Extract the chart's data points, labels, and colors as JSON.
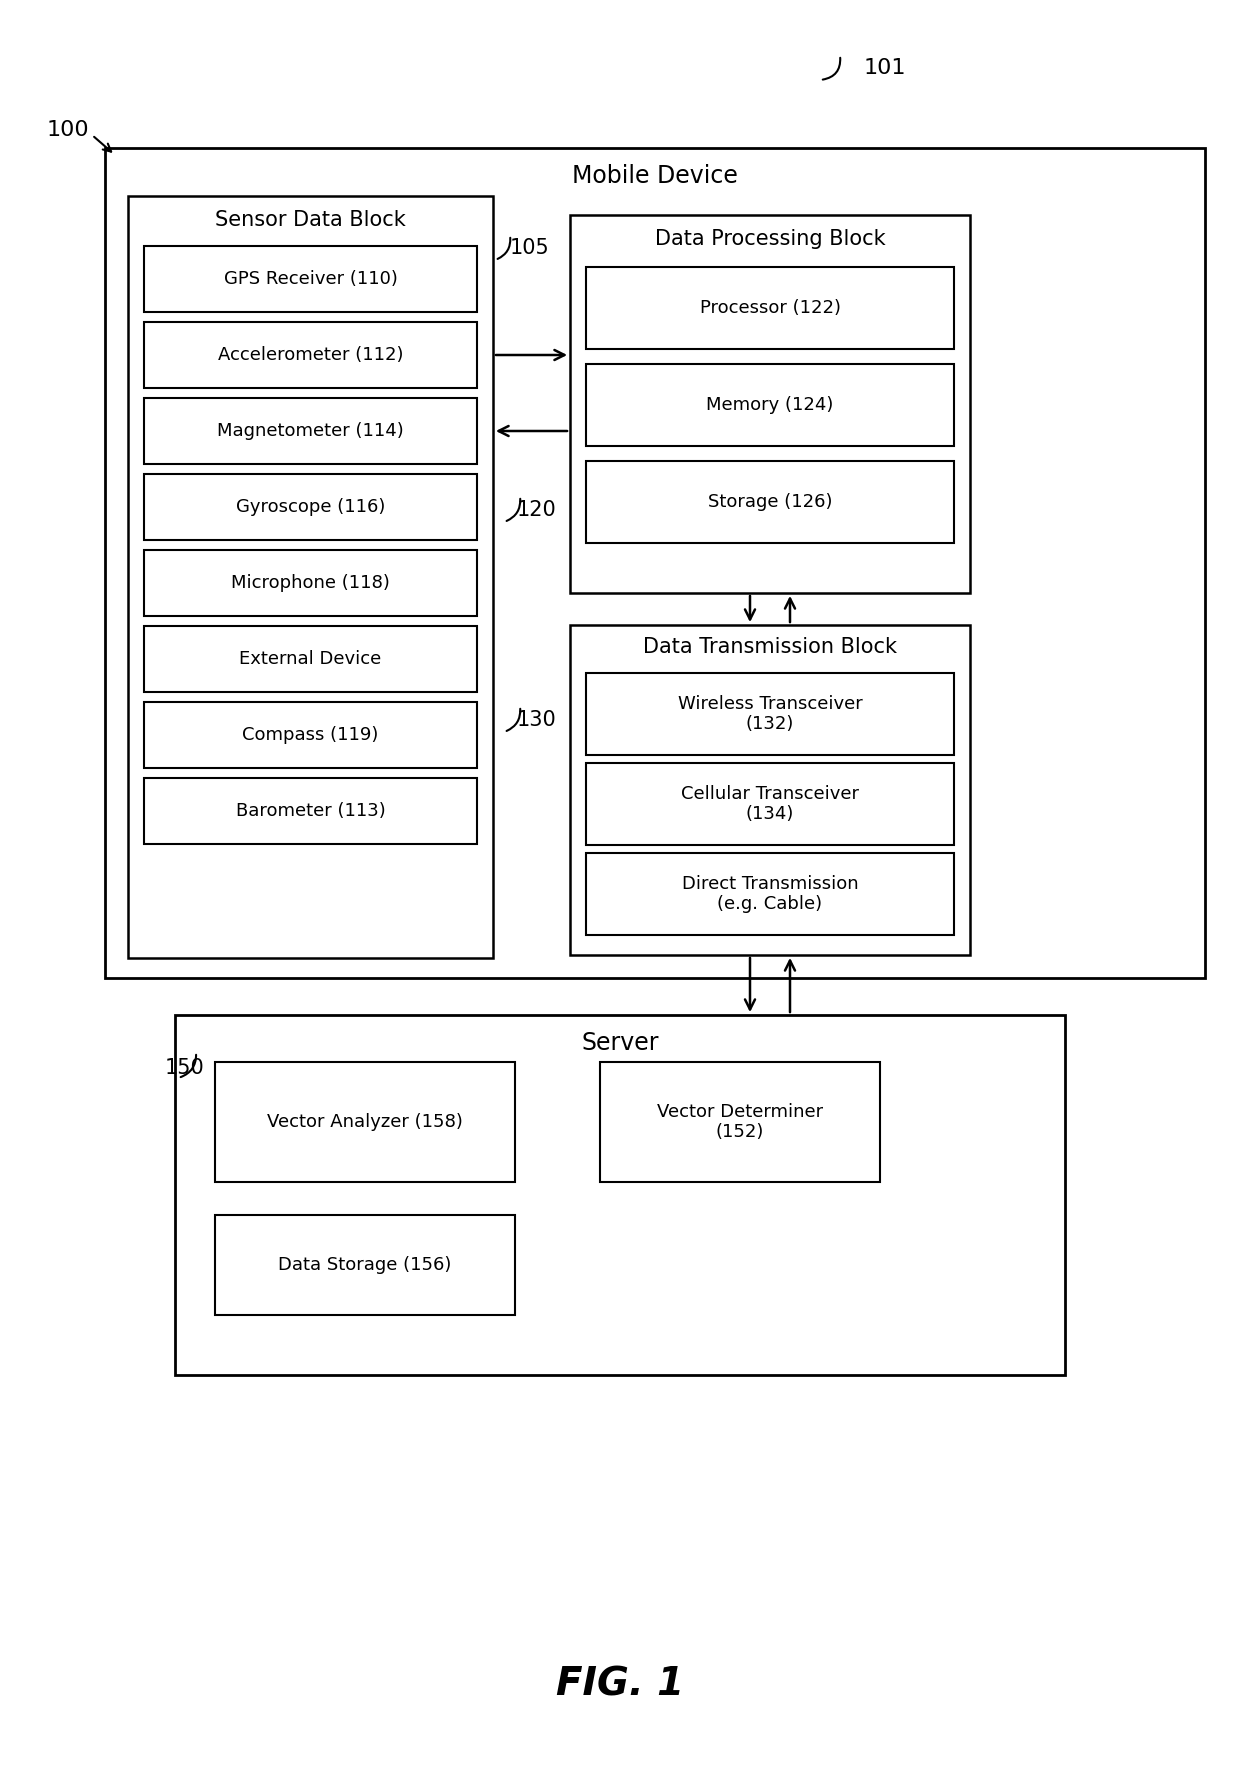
{
  "bg_color": "#ffffff",
  "fig_label": "FIG. 1",
  "label_101": "101",
  "label_100": "100",
  "label_105": "105",
  "label_120": "120",
  "label_130": "130",
  "label_150": "150",
  "mobile_device_label": "Mobile Device",
  "sensor_block_label": "Sensor Data Block",
  "sensor_items": [
    "GPS Receiver (110)",
    "Accelerometer (112)",
    "Magnetometer (114)",
    "Gyroscope (116)",
    "Microphone (118)",
    "External Device",
    "Compass (119)",
    "Barometer (113)"
  ],
  "data_processing_label": "Data Processing Block",
  "processing_items": [
    "Processor (122)",
    "Memory (124)",
    "Storage (126)"
  ],
  "data_transmission_label": "Data Transmission Block",
  "transmission_items": [
    "Wireless Transceiver\n(132)",
    "Cellular Transceiver\n(134)",
    "Direct Transmission\n(e.g. Cable)"
  ],
  "server_label": "Server",
  "server_items_row1": [
    "Vector Analyzer (158)",
    "Vector Determiner\n(152)"
  ],
  "server_items_row2": [
    "Data Storage (156)"
  ],
  "text_color": "#000000"
}
